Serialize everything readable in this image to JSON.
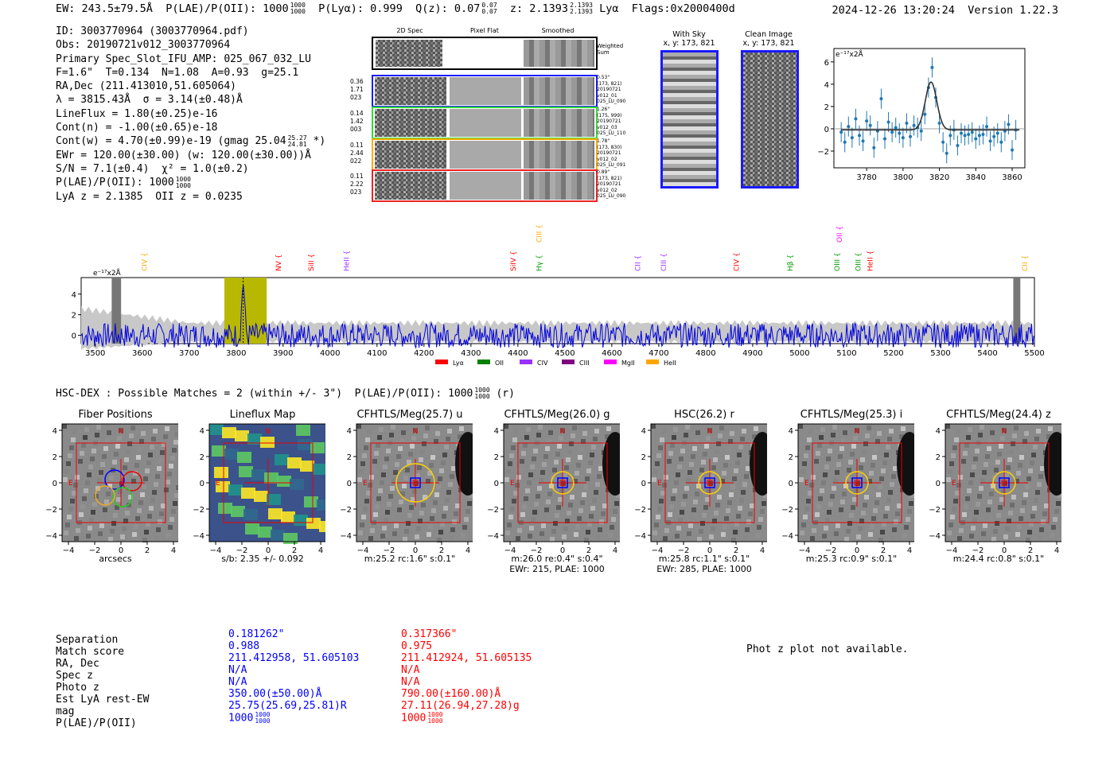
{
  "header": {
    "ew": "EW: 243.5±79.5Å",
    "plae_label": "P(LAE)/P(OII): 1000",
    "plae_hi": "1000",
    "plae_lo": "1000",
    "plya": "P(Lyα): 0.999",
    "qz_label": "Q(z): 0.07",
    "qz_hi": "0.07",
    "qz_lo": "0.07",
    "z_label": "z: 2.1393",
    "z_hi": "2.1393",
    "z_lo": "2.1393",
    "line": "Lyα",
    "flags": "Flags:0x2000400d",
    "datetime": "2024-12-26 13:20:24",
    "version": "Version 1.22.3"
  },
  "info": {
    "id": "ID: 3003770964 (3003770964.pdf)",
    "obs": "Obs: 20190721v012_3003770964",
    "primary": "Primary Spec_Slot_IFU_AMP: 025_067_032_LU",
    "params": "F=1.6\"  T=0.134  N=1.08  A=0.93  g=25.1",
    "radec": "RA,Dec (211.413010,51.605064)",
    "lambda": "λ = 3815.43Å  σ = 3.14(±0.48)Å",
    "lineflux": "LineFlux = 1.80(±0.25)e-16",
    "contn": "Cont(n) = -1.00(±0.65)e-18",
    "contw": "Cont(w) = 4.70(±0.99)e-19 (gmag 25.04",
    "contw_hi": "25.27",
    "contw_lo": "24.81",
    "contw_end": "*)",
    "ewr": "EWr = 120.00(±30.00) (w: 120.00(±30.00))Å",
    "sn": "S/N = 7.1(±0.4)  χ² = 1.0(±0.2)",
    "plae": "P(LAE)/P(OII): 1000",
    "plae_hi": "1000",
    "plae_lo": "1000",
    "lya": "LyA z = 2.1385  OII z = 0.0235"
  },
  "fiber_panels": {
    "col_titles": [
      "2D Spec",
      "Pixel Flat",
      "Smoothed"
    ],
    "weighted_label": "Weighted Sum",
    "rows": [
      {
        "left": [
          "0.36",
          "1.71",
          "023"
        ],
        "right": [
          "0.53\"",
          "(173, 821)",
          "20190721",
          "v012_01",
          "025_LU_090"
        ],
        "color": "#1a1aff"
      },
      {
        "left": [
          "0.14",
          "1.42",
          "003"
        ],
        "right": [
          "1.26\"",
          "(175, 999)",
          "20190721",
          "v012_03",
          "025_LU_110"
        ],
        "color": "#33dd33"
      },
      {
        "left": [
          "0.11",
          "2.44",
          "022"
        ],
        "right": [
          "1.78\"",
          "(173, 830)",
          "20190721",
          "v012_02",
          "025_LU_091"
        ],
        "color": "#ffaa00"
      },
      {
        "left": [
          "0.11",
          "2.22",
          "023"
        ],
        "right": [
          "0.89\"",
          "(173, 821)",
          "20190721",
          "v012_02",
          "025_LU_090"
        ],
        "color": "#ee2222"
      }
    ]
  },
  "sky": {
    "with_sky": "With Sky",
    "with_sky_xy": "x, y: 173, 821",
    "clean": "Clean Image",
    "clean_xy": "x, y: 173, 821"
  },
  "hsc_line": {
    "text": "HSC-DEX : Possible Matches = 2 (within +/- 3\")  P(LAE)/P(OII): 1000",
    "hi": "1000",
    "lo": "1000",
    "end": "(r)"
  },
  "cutouts": [
    {
      "title": "Fiber Positions",
      "caption": "arcsecs",
      "caption2": ""
    },
    {
      "title": "Lineflux Map",
      "caption": "s/b: 2.35 +/- 0.092",
      "caption2": ""
    },
    {
      "title": "CFHTLS/Meg(25.7) u",
      "caption": "m:25.2 rc:1.6\"  s:0.1\"",
      "caption2": ""
    },
    {
      "title": "CFHTLS/Meg(26.0) g",
      "caption": "m:26.0  re:0.4\"  s:0.4\"",
      "caption2": "EWr: 215, PLAE: 1000"
    },
    {
      "title": "HSC(26.2) r",
      "caption": "m:25.8 rc:1.1\"  s:0.1\"",
      "caption2": "EWr: 285, PLAE: 1000"
    },
    {
      "title": "CFHTLS/Meg(25.3) i",
      "caption": "m:25.3 rc:0.9\"  s:0.1\"",
      "caption2": ""
    },
    {
      "title": "CFHTLS/Meg(24.4) z",
      "caption": "m:24.4 rc:0.8\"  s:0.1\"",
      "caption2": ""
    }
  ],
  "cutout_marks": {
    "north": "N",
    "east": "E"
  },
  "table": {
    "labels": [
      "Separation",
      "Match score",
      "RA, Dec",
      "Spec z",
      "Photo z",
      "Est LyA rest-EW",
      "mag",
      "P(LAE)/P(OII)"
    ],
    "match1": [
      "0.181262\"",
      "0.988",
      "211.412958, 51.605103",
      "N/A",
      "N/A",
      "350.00(±50.00)Å",
      "25.75(25.69,25.81)R",
      "1000"
    ],
    "match1_plae_hi": "1000",
    "match1_plae_lo": "1000",
    "match2": [
      "0.317366\"",
      "0.975",
      "211.412924, 51.605135",
      "N/A",
      "N/A",
      "790.00(±160.00)Å",
      "27.11(26.94,27.28)g",
      "1000"
    ],
    "match2_plae_hi": "1000",
    "match2_plae_lo": "1000",
    "match1_color": "#0000ff",
    "match2_color": "#ff0000"
  },
  "phot_z": "Phot z plot not available.",
  "chart_data": [
    {
      "type": "scatter",
      "title": "",
      "units_label": "e⁻¹⁷x2Å",
      "x": [
        3766,
        3768,
        3770,
        3772,
        3774,
        3776,
        3778,
        3780,
        3782,
        3784,
        3786,
        3788,
        3790,
        3792,
        3794,
        3796,
        3798,
        3800,
        3802,
        3804,
        3806,
        3808,
        3810,
        3812,
        3814,
        3816,
        3818,
        3820,
        3822,
        3824,
        3826,
        3828,
        3830,
        3832,
        3834,
        3836,
        3838,
        3840,
        3842,
        3844,
        3846,
        3848,
        3850,
        3852,
        3854,
        3856,
        3858,
        3860,
        3862
      ],
      "y": [
        -0.3,
        -1.2,
        0.2,
        -0.8,
        0.9,
        -0.6,
        -1.1,
        0.7,
        0.3,
        -1.7,
        -0.2,
        2.7,
        -0.9,
        0.6,
        -0.3,
        0.1,
        -0.4,
        -0.8,
        0.5,
        -0.7,
        0.3,
        0.1,
        -0.2,
        1.3,
        3.7,
        5.5,
        2.8,
        0.5,
        -1.2,
        -2.2,
        -0.6,
        -0.1,
        -1.5,
        -0.4,
        -0.6,
        -0.5,
        -0.3,
        -0.9,
        -0.6,
        -0.5,
        0.2,
        -1.1,
        -0.7,
        -0.4,
        -1.2,
        -0.2,
        0.4,
        -1.9,
        -0.1
      ],
      "err": 0.9,
      "fit": "gaussian",
      "fit_mu": 3815.4,
      "fit_sigma": 3.14,
      "fit_amp": 4.3,
      "xlim": [
        3762,
        3867
      ],
      "ylim": [
        -3.5,
        7.2
      ],
      "xticks": [
        3780,
        3800,
        3820,
        3840,
        3860
      ],
      "yticks": [
        -2,
        0,
        2,
        4,
        6
      ]
    },
    {
      "type": "line",
      "title": "",
      "units_label": "e⁻¹⁷x2Å",
      "x_range": [
        3470,
        5500
      ],
      "xticks": [
        3500,
        3600,
        3700,
        3800,
        3900,
        4000,
        4100,
        4200,
        4300,
        4400,
        4500,
        4600,
        4700,
        4800,
        4900,
        5000,
        5100,
        5200,
        5300,
        5400,
        5500
      ],
      "ylim": [
        -0.8,
        5.6
      ],
      "yticks": [
        0,
        2,
        4
      ],
      "emission_peak": {
        "x": 3815,
        "y": 5.2
      },
      "highlight_band": [
        3775,
        3865
      ],
      "masked": [
        [
          3535,
          3555
        ],
        [
          5455,
          5470
        ]
      ],
      "line_markers": [
        {
          "name": "CIV",
          "x": 3605,
          "color": "#ffa500",
          "level": 1
        },
        {
          "name": "NV",
          "x": 3890,
          "color": "#ff0000",
          "level": 1
        },
        {
          "name": "SiII",
          "x": 3960,
          "color": "#ff0000",
          "level": 1
        },
        {
          "name": "HeII",
          "x": 4035,
          "color": "#9b30ff",
          "level": 1
        },
        {
          "name": "SiIV",
          "x": 4390,
          "color": "#ff0000",
          "level": 1
        },
        {
          "name": "CIII",
          "x": 4445,
          "color": "#ffa500",
          "level": 2
        },
        {
          "name": "Hγ",
          "x": 4445,
          "color": "#009900",
          "level": 1
        },
        {
          "name": "CII",
          "x": 4655,
          "color": "#9b30ff",
          "level": 1
        },
        {
          "name": "CIII",
          "x": 4710,
          "color": "#9b30ff",
          "level": 1
        },
        {
          "name": "CIV",
          "x": 4865,
          "color": "#ff0000",
          "level": 1
        },
        {
          "name": "Hβ",
          "x": 4980,
          "color": "#009900",
          "level": 1
        },
        {
          "name": "OII",
          "x": 5085,
          "color": "#ff00ff",
          "level": 2
        },
        {
          "name": "OIII",
          "x": 5080,
          "color": "#009900",
          "level": 1
        },
        {
          "name": "OIII",
          "x": 5125,
          "color": "#009900",
          "level": 1
        },
        {
          "name": "HeII",
          "x": 5150,
          "color": "#ff0000",
          "level": 1
        },
        {
          "name": "CII",
          "x": 5480,
          "color": "#ffa500",
          "level": 1
        }
      ],
      "legend": [
        {
          "name": "Lyα",
          "color": "#ff0000"
        },
        {
          "name": "OII",
          "color": "#008000"
        },
        {
          "name": "CIV",
          "color": "#9b30ff"
        },
        {
          "name": "CIII",
          "color": "#800080"
        },
        {
          "name": "MgII",
          "color": "#ff00ff"
        },
        {
          "name": "HeII",
          "color": "#ffa500"
        }
      ]
    }
  ]
}
